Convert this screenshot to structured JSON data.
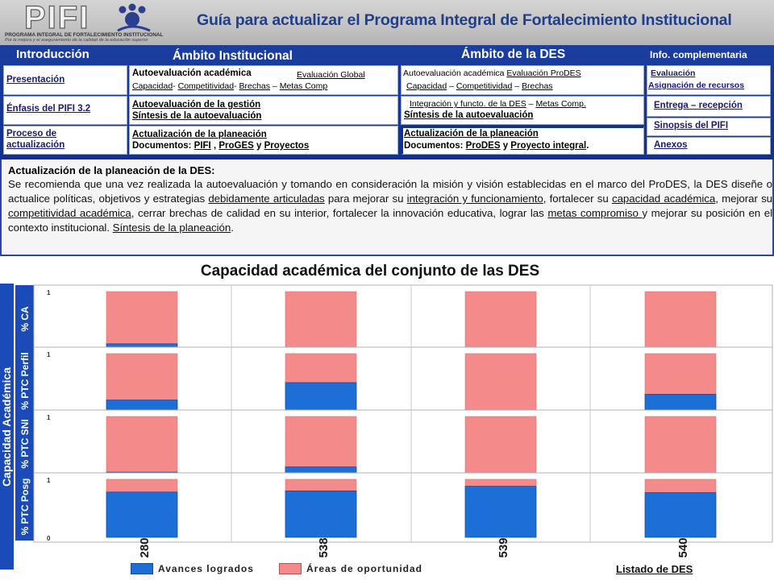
{
  "header": {
    "logo_text": "PIFI",
    "logo_subtitle": "PROGRAMA INTEGRAL DE FORTALECIMIENTO INSTITUCIONAL",
    "logo_tagline": "Por la mejora y el aseguramiento de la calidad de la educación superior",
    "title": "Guía para actualizar el Programa Integral de Fortalecimiento Institucional"
  },
  "nav": {
    "intro_header": "Introducción",
    "institucional_header": "Ámbito Institucional",
    "des_header": "Ámbito de la DES",
    "info_header": "Info. complementaria",
    "intro": {
      "presentacion": "Presentación",
      "enfasis": "Énfasis del PIFI 3.2",
      "proceso_1": "Proceso de",
      "proceso_2": "actualización"
    },
    "institucional": {
      "autoeval_label": "Autoevaluación académica",
      "evaluacion_global": "Evaluación Global",
      "capacidad": "Capacidad",
      "sep1": "- ",
      "competitividad": "Competitividad",
      "sep2": "- ",
      "brechas": "Brechas",
      "sep3": " – ",
      "metas": "Metas Comp",
      "autoeval_gestion": "Autoevaluación de la gestión",
      "sintesis": "Síntesis de la autoevaluación",
      "actualizacion": "Actualización de la planeación",
      "documentos": "Documentos: ",
      "pifi": "PIFI",
      "comma": " , ",
      "proges": "ProGES",
      "y": " y ",
      "proyectos": "Proyectos"
    },
    "des": {
      "autoeval_label": "Autoevaluación académica ",
      "evaluacion_prodes": "Evaluación ProDES",
      "capacidad": "Capacidad",
      "sep1": " – ",
      "competitividad": "Competitividad",
      "sep2": " – ",
      "brechas": "Brechas",
      "integracion": "Integración y functo. de la DES",
      "sep3": " – ",
      "metas": "Metas Comp.",
      "sintesis": "Síntesis de la autoevaluación",
      "actualizacion": "Actualización de la planeación",
      "documentos": "Documentos: ",
      "prodes": "ProDES",
      "y": " y ",
      "proyecto": "Proyecto integral",
      "dot": "."
    },
    "info": {
      "evaluacion": "Evaluación",
      "asignacion": "Asignación de recursos",
      "entrega": "Entrega – recepción",
      "sinopsis": "Sinopsis del PIFI",
      "anexos": "Anexos"
    }
  },
  "description": {
    "title": "Actualización  de la planeación  de la DES:",
    "p1": "Se recomienda que una vez realizada la autoevaluación y tomando en consideración la misión y visión establecidas en el marco del ProDES, la DES diseñe o actualice políticas, objetivos y estrategias ",
    "l1": "debidamente articuladas",
    "p2": " para mejorar su ",
    "l2": "integración y funcionamiento",
    "p3": ", fortalecer su ",
    "l3": "capacidad académica",
    "p4": ", mejorar su ",
    "l4": "competitividad académica",
    "p5": ", cerrar brechas de calidad en su interior, fortalecer la innovación educativa, lograr las ",
    "l5": "metas compromiso ",
    "p6": "y mejorar su posición en el contexto institucional. ",
    "l6": "Síntesis de la planeación",
    "p7": "."
  },
  "chart_data": {
    "type": "bar",
    "stacked": true,
    "title": "Capacidad académica del conjunto de las DES",
    "group_label": "Capacidad Académica",
    "categories": [
      "280",
      "538",
      "539",
      "540"
    ],
    "ylim": [
      0,
      1
    ],
    "yticks": [
      "0",
      "1"
    ],
    "series_names": [
      "Avances logrados",
      "Áreas de oportunidad"
    ],
    "series_colors": [
      "#1b6fd6",
      "#f48a8a"
    ],
    "panels": [
      {
        "label": "% CA",
        "values": [
          0.1,
          0.0,
          0.0,
          0.0
        ]
      },
      {
        "label": "% PTC Perfil",
        "values": [
          0.2,
          0.5,
          0.03,
          0.3
        ]
      },
      {
        "label": "% PTC SNI",
        "values": [
          0.04,
          0.13,
          0.0,
          0.02
        ]
      },
      {
        "label": "% PTC Posg",
        "values": [
          0.78,
          0.8,
          0.88,
          0.77
        ]
      }
    ]
  },
  "footer": {
    "list_link": "Listado de DES"
  }
}
